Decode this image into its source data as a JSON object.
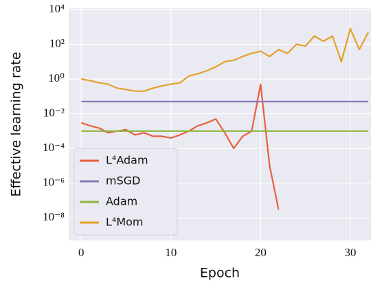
{
  "chart_data": {
    "type": "line",
    "x_label": "Epoch",
    "y_label": "Effective learning rate",
    "x": [
      0,
      1,
      2,
      3,
      4,
      5,
      6,
      7,
      8,
      9,
      10,
      11,
      12,
      13,
      14,
      15,
      16,
      17,
      18,
      19,
      20,
      21,
      22,
      23,
      24,
      25,
      26,
      27,
      28,
      29,
      30,
      31,
      32
    ],
    "series": [
      {
        "name": "L⁴Adam",
        "color": "#e8603c",
        "values": [
          0.003,
          0.002,
          0.0015,
          0.0008,
          0.001,
          0.0012,
          0.0006,
          0.0008,
          0.0005,
          0.0005,
          0.0004,
          0.0006,
          0.001,
          0.002,
          0.003,
          0.005,
          0.0008,
          0.0001,
          0.0005,
          0.001,
          0.5,
          1e-05,
          3e-08,
          null,
          null,
          null,
          null,
          null,
          null,
          null,
          null,
          null,
          null
        ]
      },
      {
        "name": "mSGD",
        "color": "#8a78b8",
        "values": [
          0.05,
          0.05,
          0.05,
          0.05,
          0.05,
          0.05,
          0.05,
          0.05,
          0.05,
          0.05,
          0.05,
          0.05,
          0.05,
          0.05,
          0.05,
          0.05,
          0.05,
          0.05,
          0.05,
          0.05,
          0.05,
          0.05,
          0.05,
          0.05,
          0.05,
          0.05,
          0.05,
          0.05,
          0.05,
          0.05,
          0.05,
          0.05,
          0.05
        ]
      },
      {
        "name": "Adam",
        "color": "#8db53c",
        "values": [
          0.001,
          0.001,
          0.001,
          0.001,
          0.001,
          0.001,
          0.001,
          0.001,
          0.001,
          0.001,
          0.001,
          0.001,
          0.001,
          0.001,
          0.001,
          0.001,
          0.001,
          0.001,
          0.001,
          0.001,
          0.001,
          0.001,
          0.001,
          0.001,
          0.001,
          0.001,
          0.001,
          0.001,
          0.001,
          0.001,
          0.001,
          0.001,
          0.001
        ]
      },
      {
        "name": "L⁴Mom",
        "color": "#e5a02a",
        "values": [
          1,
          0.8,
          0.6,
          0.5,
          0.3,
          0.25,
          0.2,
          0.2,
          0.3,
          0.4,
          0.5,
          0.6,
          1.5,
          2,
          3,
          5,
          10,
          12,
          20,
          30,
          40,
          20,
          50,
          30,
          100,
          80,
          300,
          150,
          300,
          10,
          800,
          50,
          500
        ]
      }
    ],
    "xlim": [
      -1.4,
      32.3
    ],
    "xticks": [
      0,
      10,
      20,
      30
    ],
    "ylim": [
      5e-10,
      12000
    ],
    "y_log": true,
    "yticks": [
      {
        "value": 1e-08,
        "label": "10⁻⁸"
      },
      {
        "value": 1e-06,
        "label": "10⁻⁶"
      },
      {
        "value": 0.0001,
        "label": "10⁻⁴"
      },
      {
        "value": 0.01,
        "label": "10⁻²"
      },
      {
        "value": 1,
        "label": "10⁰"
      },
      {
        "value": 100,
        "label": "10²"
      },
      {
        "value": 10000,
        "label": "10⁴"
      }
    ],
    "grid": true,
    "legend": "lower left"
  }
}
